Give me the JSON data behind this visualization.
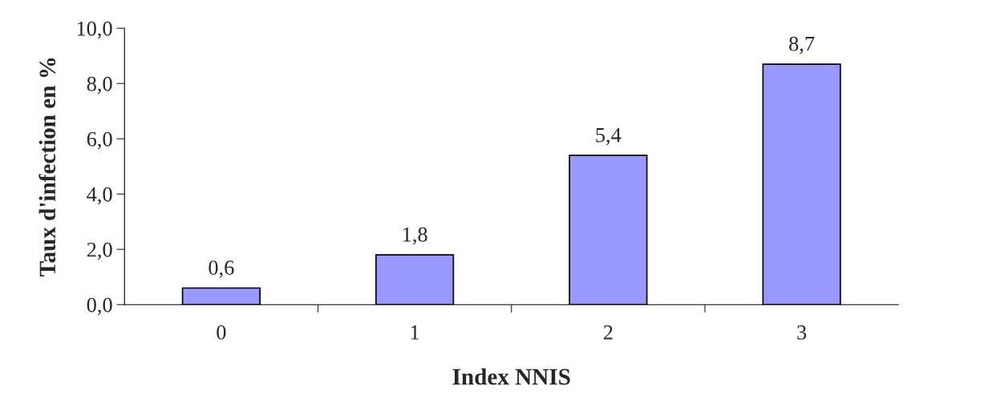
{
  "chart_data": {
    "type": "bar",
    "xlabel": "Index NNIS",
    "ylabel": "Taux d'infection en %",
    "categories": [
      "0",
      "1",
      "2",
      "3"
    ],
    "values": [
      0.6,
      1.8,
      5.4,
      8.7
    ],
    "value_labels": [
      "0,6",
      "1,8",
      "5,4",
      "8,7"
    ],
    "color": "#9999ff",
    "ylim": [
      0,
      10
    ],
    "yticks": [
      {
        "value": 0,
        "label": "0,0"
      },
      {
        "value": 2,
        "label": "2,0"
      },
      {
        "value": 4,
        "label": "4,0"
      },
      {
        "value": 6,
        "label": "6,0"
      },
      {
        "value": 8,
        "label": "8,0"
      },
      {
        "value": 10,
        "label": "10,0"
      }
    ],
    "grid": false,
    "legend": false
  }
}
